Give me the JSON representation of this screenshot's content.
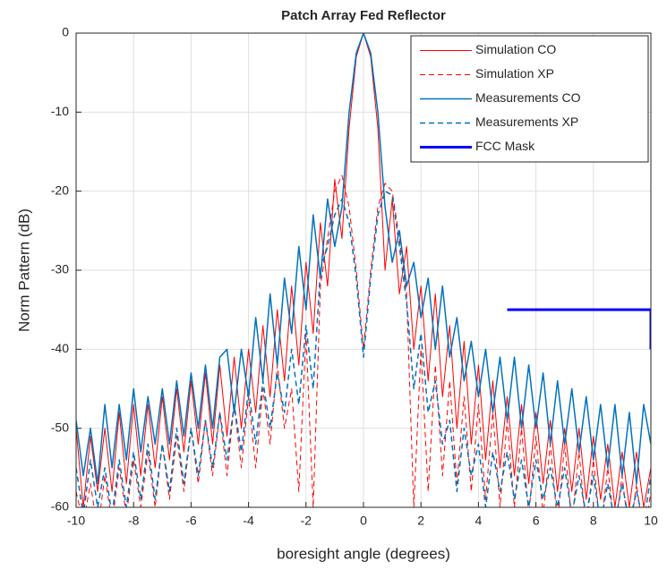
{
  "chart_data": {
    "type": "line",
    "title": "Patch Array  Fed Reflector",
    "xlabel": "boresight angle (degrees)",
    "ylabel": "Norm Pattern (dB)",
    "xlim": [
      -10,
      10
    ],
    "ylim": [
      -60,
      0
    ],
    "xticks": [
      -10,
      -8,
      -6,
      -4,
      -2,
      0,
      2,
      4,
      6,
      8,
      10
    ],
    "yticks": [
      -60,
      -50,
      -40,
      -30,
      -20,
      -10,
      0
    ],
    "grid": true,
    "legend": "top-right",
    "x": [
      -10,
      -9.75,
      -9.5,
      -9.25,
      -9,
      -8.75,
      -8.5,
      -8.25,
      -8,
      -7.75,
      -7.5,
      -7.25,
      -7,
      -6.75,
      -6.5,
      -6.25,
      -6,
      -5.75,
      -5.5,
      -5.25,
      -5,
      -4.75,
      -4.5,
      -4.25,
      -4,
      -3.75,
      -3.5,
      -3.25,
      -3,
      -2.75,
      -2.5,
      -2.25,
      -2,
      -1.75,
      -1.5,
      -1.25,
      -1,
      -0.75,
      -0.5,
      -0.25,
      0,
      0.25,
      0.5,
      0.75,
      1,
      1.25,
      1.5,
      1.75,
      2,
      2.25,
      2.5,
      2.75,
      3,
      3.25,
      3.5,
      3.75,
      4,
      4.25,
      4.5,
      4.75,
      5,
      5.25,
      5.5,
      5.75,
      6,
      6.25,
      6.5,
      6.75,
      7,
      7.25,
      7.5,
      7.75,
      8,
      8.25,
      8.5,
      8.75,
      9,
      9.25,
      9.5,
      9.75,
      10
    ],
    "series": [
      {
        "name": "Simulation CO",
        "color": "#ff0000",
        "dash": false,
        "width": 1,
        "values": [
          -50,
          -60,
          -51,
          -58,
          -50,
          -58,
          -48,
          -57,
          -47,
          -56,
          -47,
          -55,
          -46,
          -54,
          -45,
          -53,
          -44,
          -52,
          -43,
          -52,
          -42,
          -51,
          -41,
          -50,
          -40,
          -48,
          -37,
          -46,
          -35,
          -44,
          -32,
          -42,
          -29,
          -38,
          -24,
          -32,
          -18.5,
          -26,
          -12,
          -3,
          0,
          -3,
          -12,
          -30,
          -21,
          -33,
          -27,
          -40,
          -32,
          -44,
          -33,
          -46,
          -37,
          -50,
          -39,
          -52,
          -42,
          -54,
          -44,
          -55,
          -46,
          -56,
          -47,
          -57,
          -48,
          -57,
          -49,
          -58,
          -50,
          -58,
          -50,
          -59,
          -51,
          -59,
          -52,
          -60,
          -53,
          -60,
          -53,
          -60,
          -55
        ]
      },
      {
        "name": "Simulation XP",
        "color": "#ff0000",
        "dash": true,
        "width": 1,
        "values": [
          -58,
          -62,
          -57,
          -63,
          -56,
          -62,
          -55,
          -61,
          -54,
          -60,
          -53,
          -60,
          -52,
          -59,
          -51,
          -58,
          -50,
          -57,
          -49,
          -56,
          -48,
          -56,
          -47,
          -55,
          -46,
          -55,
          -45,
          -52,
          -42,
          -50,
          -45,
          -58,
          -38,
          -60,
          -32,
          -26,
          -20,
          -18,
          -22,
          -30,
          -40,
          -30,
          -22,
          -19,
          -20,
          -26,
          -33,
          -60,
          -40,
          -58,
          -42,
          -56,
          -44,
          -57,
          -46,
          -58,
          -47,
          -59,
          -48,
          -60,
          -49,
          -60,
          -50,
          -61,
          -51,
          -61,
          -52,
          -62,
          -52,
          -62,
          -53,
          -63,
          -54,
          -63,
          -55,
          -63,
          -56,
          -64,
          -57,
          -64,
          -58
        ]
      },
      {
        "name": "Measurements CO",
        "color": "#0072bd",
        "dash": false,
        "width": 1.5,
        "values": [
          -49,
          -56,
          -50,
          -57,
          -47,
          -55,
          -47,
          -54,
          -45,
          -53,
          -46,
          -52,
          -45,
          -52,
          -44,
          -51,
          -43,
          -50,
          -42,
          -50,
          -41,
          -40,
          -48,
          -40,
          -46,
          -36,
          -44,
          -33,
          -42,
          -31,
          -38,
          -27,
          -35,
          -23,
          -31,
          -21,
          -27,
          -22,
          -10,
          -2.5,
          0,
          -2.5,
          -10,
          -22,
          -29,
          -25,
          -32,
          -29,
          -36,
          -31,
          -40,
          -32,
          -41,
          -36,
          -44,
          -39,
          -46,
          -40,
          -48,
          -41,
          -49,
          -41,
          -50,
          -42,
          -50,
          -43,
          -52,
          -44,
          -52,
          -45,
          -53,
          -46,
          -54,
          -47,
          -55,
          -47,
          -56,
          -48,
          -57,
          -47,
          -52
        ]
      },
      {
        "name": "Measurements XP",
        "color": "#0072bd",
        "dash": true,
        "width": 1.5,
        "values": [
          -55,
          -61,
          -54,
          -60,
          -55,
          -61,
          -54,
          -60,
          -53,
          -59,
          -52,
          -59,
          -52,
          -58,
          -50,
          -57,
          -50,
          -56,
          -49,
          -55,
          -48,
          -54,
          -47,
          -53,
          -45,
          -52,
          -44,
          -50,
          -43,
          -48,
          -40,
          -47,
          -37,
          -45,
          -30,
          -27,
          -23,
          -21,
          -24,
          -31,
          -41,
          -31,
          -23,
          -20,
          -20.5,
          -27,
          -34,
          -45,
          -38,
          -48,
          -44,
          -52,
          -49,
          -58,
          -50,
          -56,
          -52,
          -60,
          -53,
          -58,
          -53,
          -59,
          -54,
          -60,
          -54,
          -59,
          -55,
          -60,
          -55,
          -61,
          -56,
          -61,
          -56,
          -62,
          -57,
          -62,
          -57,
          -62,
          -58,
          -62,
          -56
        ]
      },
      {
        "name": "FCC Mask",
        "color": "#0000ff",
        "dash": false,
        "width": 3,
        "x": [
          5,
          10,
          10
        ],
        "values": [
          -35,
          -35,
          -40
        ]
      }
    ]
  }
}
